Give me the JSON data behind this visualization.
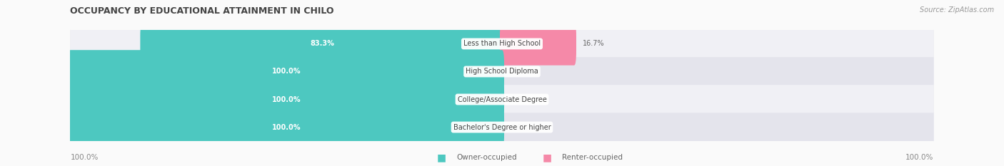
{
  "title": "OCCUPANCY BY EDUCATIONAL ATTAINMENT IN CHILO",
  "source": "Source: ZipAtlas.com",
  "categories": [
    "Less than High School",
    "High School Diploma",
    "College/Associate Degree",
    "Bachelor's Degree or higher"
  ],
  "owner_values": [
    83.3,
    100.0,
    100.0,
    100.0
  ],
  "renter_values": [
    16.7,
    0.0,
    0.0,
    0.0
  ],
  "owner_color": "#4DC8C0",
  "renter_color": "#F589A8",
  "bar_bg_color": "#E8E8EE",
  "row_bg_colors": [
    "#F0F0F5",
    "#E4E4EC"
  ],
  "label_color": "#FFFFFF",
  "category_label_color": "#444444",
  "value_label_color": "#666666",
  "title_color": "#444444",
  "legend_label_color": "#666666",
  "axis_label_color": "#888888",
  "axis_left_label": "100.0%",
  "axis_right_label": "100.0%",
  "bar_height": 0.55,
  "figsize": [
    14.06,
    2.33
  ],
  "dpi": 100
}
